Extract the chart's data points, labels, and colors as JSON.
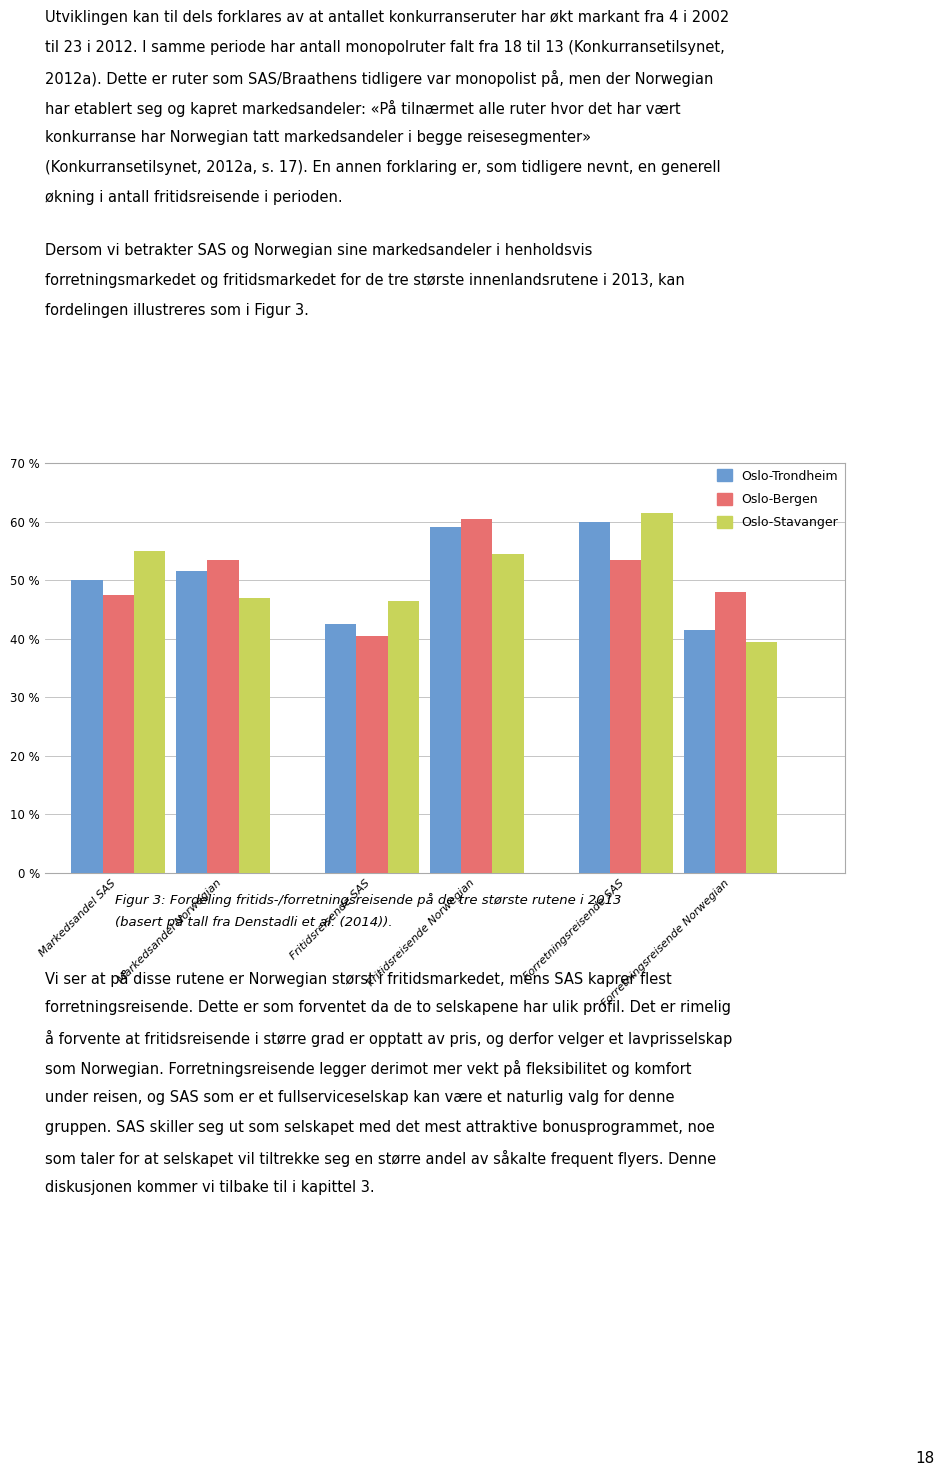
{
  "categories": [
    "Markedsandel SAS",
    "Markedsandel Norwegian",
    "Fritidsreisende SAS",
    "Fritidsreisende Norwegian",
    "Forretningsreisende SAS",
    "Forretningsreisende Norwegian"
  ],
  "series_trondheim": [
    0.5,
    0.515,
    0.425,
    0.59,
    0.6,
    0.415
  ],
  "series_bergen": [
    0.475,
    0.535,
    0.405,
    0.605,
    0.535,
    0.48
  ],
  "series_stavanger": [
    0.55,
    0.47,
    0.465,
    0.545,
    0.615,
    0.395
  ],
  "color_trondheim": "#6A9BD2",
  "color_bergen": "#E87070",
  "color_stavanger": "#C8D45A",
  "ylim_max": 0.7,
  "ytick_vals": [
    0.0,
    0.1,
    0.2,
    0.3,
    0.4,
    0.5,
    0.6,
    0.7
  ],
  "ytick_labels": [
    "0 %",
    "10 %",
    "20 %",
    "30 %",
    "40 %",
    "50 %",
    "60 %",
    "70 %"
  ],
  "legend_labels": [
    "Oslo-Trondheim",
    "Oslo-Bergen",
    "Oslo-Stavanger"
  ],
  "caption_line1": "Figur 3: Fordeling fritids-/forretningsreisende på de tre største rutene i 2013",
  "caption_line2": "(basert på tall fra Denstadli et al. (2014)).",
  "page_number": "18",
  "text1_line1": "Utviklingen kan til dels forklares av at antallet konkurranseruter har økt markant fra 4 i 2002",
  "text1_line2": "til 23 i 2012. I samme periode har antall monopolruter falt fra 18 til 13 (Konkurransetilsynet,",
  "text1_line3": "2012a). Dette er ruter som SAS/Braathens tidligere var monopolist på, men der Norwegian",
  "text1_line4": "har etablert seg og kapret markedsandeler: «På tilnærmet alle ruter hvor det har vært",
  "text1_line5": "konkurranse har Norwegian tatt markedsandeler i begge reisesegmenter»",
  "text1_line6": "(Konkurransetilsynet, 2012a, s. 17). En annen forklaring er, som tidligere nevnt, en generell",
  "text1_line7": "økning i antall fritidsreisende i perioden.",
  "text2_line1": "Dersom vi betrakter SAS og Norwegian sine markedsandeler i henholdsvis",
  "text2_line2": "forretningsmarkedet og fritidsmarkedet for de tre største innenlandsrutene i 2013, kan",
  "text2_line3": "fordelingen illustreres som i Figur 3.",
  "text3_line1": "Vi ser at på disse rutene er Norwegian størst i fritidsmarkedet, mens SAS kaprer flest",
  "text3_line2": "forretningsreisende. Dette er som forventet da de to selskapene har ulik profil. Det er rimelig",
  "text3_line3": "å forvente at fritidsreisende i større grad er opptatt av pris, og derfor velger et lavprisselskap",
  "text3_line4": "som Norwegian. Forretningsreisende legger derimot mer vekt på fleksibilitet og komfort",
  "text3_line5": "under reisen, og SAS som er et fullserviceselskap kan være et naturlig valg for denne",
  "text3_line6": "gruppen. SAS skiller seg ut som selskapet med det mest attraktive bonusprogrammet, noe",
  "text3_line7": "som taler for at selskapet vil tiltrekke seg en større andel av såkalte frequent flyers. Denne",
  "text3_line8": "diskusjonen kommer vi tilbake til i kapittel 3."
}
